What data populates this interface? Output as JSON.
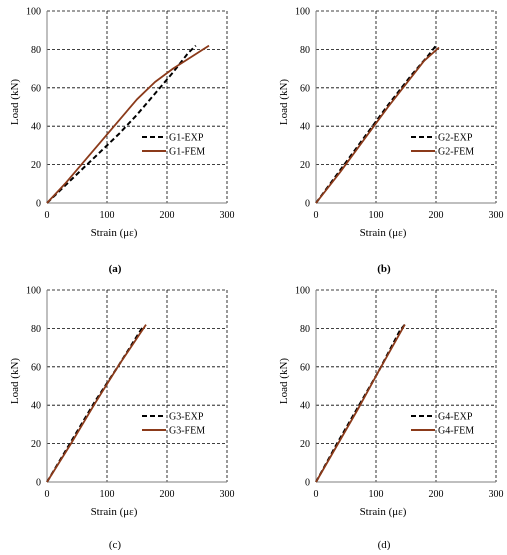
{
  "figure": {
    "colors": {
      "exp": "#000000",
      "fem": "#8B3A1A",
      "grid": "#000000",
      "axis": "#7f7f7f"
    }
  },
  "chart_data": [
    {
      "panel_label": "(a)",
      "type": "line",
      "xlabel": "Strain (με)",
      "ylabel": "Load (kN)",
      "xlim": [
        0,
        300
      ],
      "ylim": [
        0,
        100
      ],
      "xticks": [
        0,
        100,
        200,
        300
      ],
      "yticks": [
        0,
        20,
        40,
        60,
        80,
        100
      ],
      "grid": true,
      "legend_position": "right",
      "series": [
        {
          "name": "G1-EXP",
          "style": "dashed",
          "color": "#000000",
          "points": [
            [
              0,
              0
            ],
            [
              30,
              9
            ],
            [
              60,
              18
            ],
            [
              90,
              27
            ],
            [
              120,
              36
            ],
            [
              150,
              46
            ],
            [
              180,
              57
            ],
            [
              210,
              68
            ],
            [
              235,
              78
            ],
            [
              248,
              82
            ]
          ]
        },
        {
          "name": "G1-FEM",
          "style": "solid",
          "color": "#8B3A1A",
          "points": [
            [
              0,
              0
            ],
            [
              30,
              10
            ],
            [
              60,
              21
            ],
            [
              90,
              32
            ],
            [
              120,
              43
            ],
            [
              150,
              54
            ],
            [
              180,
              63
            ],
            [
              210,
              70
            ],
            [
              240,
              76
            ],
            [
              270,
              82
            ]
          ]
        }
      ]
    },
    {
      "panel_label": "(b)",
      "type": "line",
      "xlabel": "Strain (με)",
      "ylabel": "Load (kN)",
      "xlim": [
        0,
        300
      ],
      "ylim": [
        0,
        100
      ],
      "xticks": [
        0,
        100,
        200,
        300
      ],
      "yticks": [
        0,
        20,
        40,
        60,
        80,
        100
      ],
      "grid": true,
      "legend_position": "right",
      "series": [
        {
          "name": "G2-EXP",
          "style": "dashed",
          "color": "#000000",
          "points": [
            [
              0,
              0
            ],
            [
              40,
              17
            ],
            [
              80,
              34
            ],
            [
              120,
              51
            ],
            [
              160,
              67
            ],
            [
              185,
              76
            ],
            [
              200,
              82
            ]
          ]
        },
        {
          "name": "G2-FEM",
          "style": "solid",
          "color": "#8B3A1A",
          "points": [
            [
              0,
              0
            ],
            [
              40,
              16
            ],
            [
              80,
              33
            ],
            [
              120,
              50
            ],
            [
              160,
              66
            ],
            [
              180,
              74
            ],
            [
              205,
              81
            ]
          ]
        }
      ]
    },
    {
      "panel_label": "(c)",
      "type": "line",
      "xlabel": "Strain (με)",
      "ylabel": "Load (kN)",
      "xlim": [
        0,
        300
      ],
      "ylim": [
        0,
        100
      ],
      "xticks": [
        0,
        100,
        200,
        300
      ],
      "yticks": [
        0,
        20,
        40,
        60,
        80,
        100
      ],
      "grid": true,
      "legend_position": "right",
      "series": [
        {
          "name": "G3-EXP",
          "style": "dashed",
          "color": "#000000",
          "points": [
            [
              0,
              0
            ],
            [
              40,
              21
            ],
            [
              80,
              42
            ],
            [
              120,
              61
            ],
            [
              160,
              81
            ]
          ]
        },
        {
          "name": "G3-FEM",
          "style": "solid",
          "color": "#8B3A1A",
          "points": [
            [
              0,
              0
            ],
            [
              40,
              20
            ],
            [
              80,
              41
            ],
            [
              120,
              61
            ],
            [
              165,
              82
            ]
          ]
        }
      ]
    },
    {
      "panel_label": "(d)",
      "type": "line",
      "xlabel": "Strain (με)",
      "ylabel": "Load (kN)",
      "xlim": [
        0,
        300
      ],
      "ylim": [
        0,
        100
      ],
      "xticks": [
        0,
        100,
        200,
        300
      ],
      "yticks": [
        0,
        20,
        40,
        60,
        80,
        100
      ],
      "grid": true,
      "legend_position": "right",
      "series": [
        {
          "name": "G4-EXP",
          "style": "dashed",
          "color": "#000000",
          "points": [
            [
              0,
              0
            ],
            [
              35,
              20
            ],
            [
              70,
              39
            ],
            [
              105,
              58
            ],
            [
              140,
              79
            ],
            [
              148,
              82
            ]
          ]
        },
        {
          "name": "G4-FEM",
          "style": "solid",
          "color": "#8B3A1A",
          "points": [
            [
              0,
              0
            ],
            [
              35,
              19
            ],
            [
              70,
              38
            ],
            [
              105,
              58
            ],
            [
              148,
              82
            ]
          ]
        }
      ]
    }
  ]
}
